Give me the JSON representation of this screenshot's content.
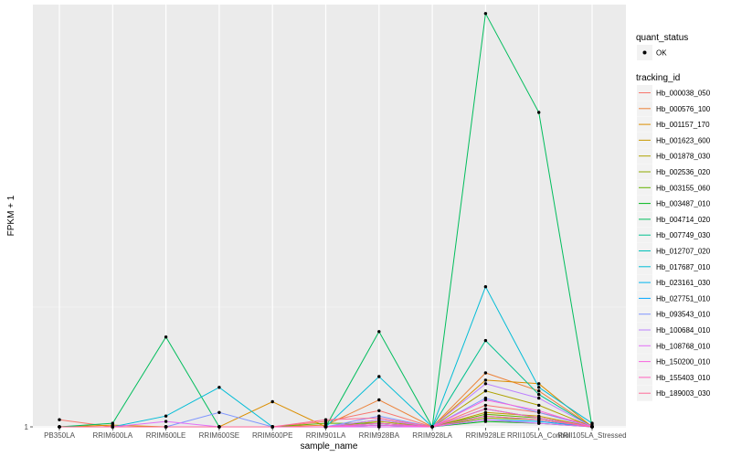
{
  "chart_data": {
    "type": "line",
    "title": "",
    "xlabel": "sample_name",
    "ylabel": "FPKM + 1",
    "y_tick_labels": [
      "1"
    ],
    "ylim": [
      0.95,
      24.5
    ],
    "categories": [
      "PB350LA",
      "RRIM600LA",
      "RRIM600LE",
      "RRIM600SE",
      "RRIM600PE",
      "RRIM901LA",
      "RRIM928BA",
      "RRIM928LA",
      "RRIM928LE",
      "RRII105LA_Control",
      "RRII105LA_Stressed"
    ],
    "grid": true,
    "legend_placement": "right",
    "legend": {
      "quant_title": "quant_status",
      "quant_entry": "OK",
      "tracking_title": "tracking_id"
    },
    "series": [
      {
        "name": "Hb_000038_050",
        "color": "#F8766D",
        "values": [
          1.4,
          1.0,
          1.0,
          1.0,
          1.0,
          1.3,
          1.9,
          1.0,
          2.2,
          1.8,
          1.1
        ]
      },
      {
        "name": "Hb_000576_100",
        "color": "#EC8239",
        "values": [
          1.0,
          1.0,
          1.0,
          1.0,
          1.0,
          1.1,
          2.5,
          1.0,
          4.0,
          3.0,
          1.0
        ]
      },
      {
        "name": "Hb_001157_170",
        "color": "#DB8E00",
        "values": [
          1.0,
          1.1,
          1.0,
          1.0,
          2.4,
          1.0,
          1.4,
          1.0,
          3.6,
          3.4,
          1.0
        ]
      },
      {
        "name": "Hb_001623_600",
        "color": "#C79800",
        "values": [
          1.0,
          1.0,
          1.0,
          1.0,
          1.0,
          1.0,
          1.2,
          1.0,
          1.8,
          1.6,
          1.0
        ]
      },
      {
        "name": "Hb_001878_030",
        "color": "#AEA200",
        "values": [
          1.0,
          1.0,
          1.0,
          1.0,
          1.0,
          1.0,
          1.3,
          1.0,
          3.0,
          2.2,
          1.0
        ]
      },
      {
        "name": "Hb_002536_020",
        "color": "#8FAA00",
        "values": [
          1.0,
          1.0,
          1.0,
          1.0,
          1.0,
          1.0,
          1.1,
          1.0,
          1.5,
          1.4,
          1.0
        ]
      },
      {
        "name": "Hb_003155_060",
        "color": "#64B200",
        "values": [
          1.0,
          1.0,
          1.0,
          1.0,
          1.0,
          1.2,
          1.2,
          1.0,
          1.7,
          1.5,
          1.0
        ]
      },
      {
        "name": "Hb_003487_010",
        "color": "#00B81B",
        "values": [
          1.0,
          1.0,
          1.0,
          1.0,
          1.0,
          1.0,
          1.0,
          1.0,
          1.3,
          1.2,
          1.0
        ]
      },
      {
        "name": "Hb_004714_020",
        "color": "#00BD5C",
        "values": [
          1.0,
          1.2,
          6.0,
          1.0,
          1.0,
          1.0,
          6.3,
          1.0,
          24.0,
          18.5,
          1.0
        ]
      },
      {
        "name": "Hb_007749_030",
        "color": "#00C08E",
        "values": [
          1.0,
          1.0,
          1.0,
          1.0,
          1.0,
          1.0,
          1.0,
          1.0,
          5.8,
          2.8,
          1.0
        ]
      },
      {
        "name": "Hb_012707_020",
        "color": "#00C0B8",
        "values": [
          1.0,
          1.0,
          1.0,
          1.0,
          1.0,
          1.0,
          1.0,
          1.0,
          2.0,
          1.5,
          1.0
        ]
      },
      {
        "name": "Hb_017687_010",
        "color": "#00BCD6",
        "values": [
          1.0,
          1.0,
          1.6,
          3.2,
          1.0,
          1.0,
          3.8,
          1.0,
          8.8,
          3.2,
          1.2
        ]
      },
      {
        "name": "Hb_023161_030",
        "color": "#00B5EE",
        "values": [
          1.0,
          1.0,
          1.0,
          1.0,
          1.0,
          1.0,
          1.2,
          1.0,
          1.6,
          1.4,
          1.0
        ]
      },
      {
        "name": "Hb_027751_010",
        "color": "#00A7FF",
        "values": [
          1.0,
          1.0,
          1.0,
          1.0,
          1.0,
          1.0,
          1.1,
          1.0,
          1.4,
          1.3,
          1.0
        ]
      },
      {
        "name": "Hb_093543_010",
        "color": "#7F96FF",
        "values": [
          1.0,
          1.0,
          1.0,
          1.8,
          1.0,
          1.0,
          1.6,
          1.0,
          2.6,
          1.8,
          1.0
        ]
      },
      {
        "name": "Hb_100684_010",
        "color": "#BC81FF",
        "values": [
          1.0,
          1.0,
          1.0,
          1.0,
          1.0,
          1.0,
          1.4,
          1.0,
          3.4,
          2.6,
          1.0
        ]
      },
      {
        "name": "Hb_108768_010",
        "color": "#E26EF7",
        "values": [
          1.0,
          1.0,
          1.3,
          1.0,
          1.0,
          1.0,
          1.0,
          1.0,
          1.4,
          1.2,
          1.0
        ]
      },
      {
        "name": "Hb_150200_010",
        "color": "#F863DF",
        "values": [
          1.0,
          1.0,
          1.0,
          1.0,
          1.0,
          1.0,
          1.1,
          1.0,
          2.5,
          1.9,
          1.0
        ]
      },
      {
        "name": "Hb_155403_010",
        "color": "#FF62BF",
        "values": [
          1.0,
          1.0,
          1.0,
          1.0,
          1.0,
          1.0,
          1.2,
          1.0,
          2.0,
          1.5,
          1.0
        ]
      },
      {
        "name": "Hb_189003_030",
        "color": "#FF6A98",
        "values": [
          1.0,
          1.0,
          1.0,
          1.0,
          1.0,
          1.4,
          1.5,
          1.0,
          1.6,
          1.4,
          1.0
        ]
      }
    ]
  }
}
